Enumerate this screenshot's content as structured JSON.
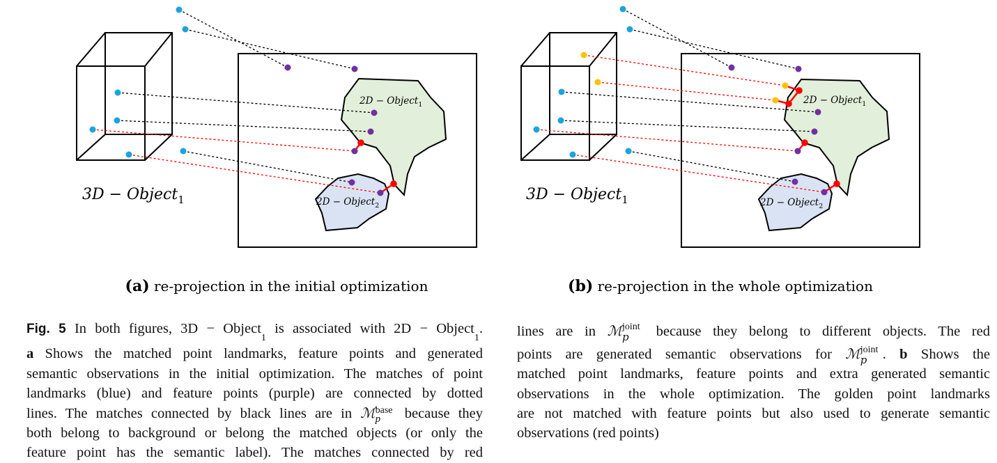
{
  "panels": [
    {
      "id": "a",
      "letter": "(a)",
      "subcaption": "re-projection in the initial optimization",
      "object3d_label": "3D − Object",
      "object3d_sub": "1",
      "object2d_1_label": "2D − Object",
      "object2d_1_sub": "1",
      "object2d_2_label": "2D − Object",
      "object2d_2_sub": "2"
    },
    {
      "id": "b",
      "letter": "(b)",
      "subcaption": "re-projection in the whole optimization",
      "object3d_label": "3D − Object",
      "object3d_sub": "1",
      "object2d_1_label": "2D − Object",
      "object2d_1_sub": "1",
      "object2d_2_label": "2D − Object",
      "object2d_2_sub": "2"
    }
  ],
  "colors": {
    "landmark_blue": "#1ba3e0",
    "feature_purple": "#7030a0",
    "semantic_red": "#ff0000",
    "golden_landmark": "#ffc000",
    "object1_fill": "#e2efda",
    "object2_fill": "#dae3f3",
    "match_black": "#000000",
    "match_red": "#ff0000"
  },
  "caption": {
    "fig_label": "Fig. 5",
    "left_lines": [
      " In both figures, 3D − Object",
      "Shows the matched point landmarks, feature points and generated",
      "semantic observations in the initial optimization. The matches of point",
      "landmarks (blue) and feature points (purple) are connected by dotted",
      "lines. The matches connected by black lines are in ",
      "both belong to background or belong the matched objects (or only the",
      "feature point has the semantic label). The matches connected by red"
    ],
    "left_line1_tail": " is associated with 2D − Object",
    "left_line1_period": ".",
    "left_bold_a": "a",
    "left_line5_tail": " because they",
    "m_base_sup": "base",
    "m_sub": "p",
    "m_joint_sup": "joint",
    "m_symbol": "ℳ",
    "right_lines": [
      "lines are in ",
      " because they belong to different objects. The red",
      "points are generated semantic observations for ",
      ". ",
      "b",
      " Shows the",
      "matched point landmarks, feature points and extra generated semantic",
      "observations in the whole optimization. The golden point landmarks",
      "are not matched with feature points but also used to generate semantic",
      "observations (red points)"
    ],
    "sub_one": "1"
  }
}
